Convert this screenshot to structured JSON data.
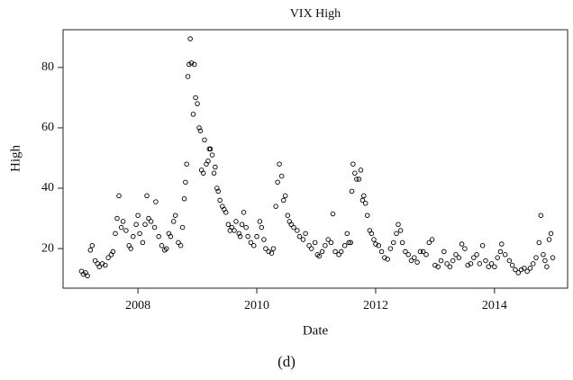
{
  "chart_data": {
    "type": "scatter",
    "title": "VIX High",
    "x_label": "Date",
    "y_label": "High",
    "caption": "(d)",
    "color": "#000000",
    "xlim": [
      2006.74,
      2015.23
    ],
    "ylim": [
      6.9,
      92.5
    ],
    "xticks": [
      2008,
      2010,
      2012,
      2014
    ],
    "yticks": [
      20,
      40,
      60,
      80
    ],
    "x": [
      2007.05,
      2007.08,
      2007.12,
      2007.15,
      2007.2,
      2007.23,
      2007.28,
      2007.32,
      2007.35,
      2007.4,
      2007.45,
      2007.5,
      2007.55,
      2007.58,
      2007.62,
      2007.65,
      2007.68,
      2007.72,
      2007.75,
      2007.8,
      2007.85,
      2007.88,
      2007.92,
      2007.97,
      2008.0,
      2008.03,
      2008.08,
      2008.12,
      2008.15,
      2008.18,
      2008.22,
      2008.28,
      2008.3,
      2008.35,
      2008.4,
      2008.45,
      2008.48,
      2008.52,
      2008.55,
      2008.6,
      2008.63,
      2008.68,
      2008.72,
      2008.75,
      2008.78,
      2008.8,
      2008.82,
      2008.84,
      2008.86,
      2008.88,
      2008.9,
      2008.93,
      2008.95,
      2008.97,
      2009.0,
      2009.03,
      2009.05,
      2009.07,
      2009.1,
      2009.12,
      2009.15,
      2009.18,
      2009.2,
      2009.22,
      2009.25,
      2009.28,
      2009.3,
      2009.33,
      2009.35,
      2009.38,
      2009.42,
      2009.45,
      2009.48,
      2009.52,
      2009.55,
      2009.58,
      2009.62,
      2009.65,
      2009.7,
      2009.72,
      2009.75,
      2009.78,
      2009.82,
      2009.85,
      2009.9,
      2009.95,
      2010.0,
      2010.05,
      2010.08,
      2010.12,
      2010.15,
      2010.2,
      2010.25,
      2010.28,
      2010.32,
      2010.35,
      2010.38,
      2010.42,
      2010.45,
      2010.48,
      2010.52,
      2010.55,
      2010.58,
      2010.62,
      2010.68,
      2010.72,
      2010.78,
      2010.82,
      2010.88,
      2010.92,
      2010.98,
      2011.02,
      2011.05,
      2011.1,
      2011.15,
      2011.2,
      2011.25,
      2011.28,
      2011.32,
      2011.38,
      2011.42,
      2011.48,
      2011.52,
      2011.55,
      2011.58,
      2011.6,
      2011.62,
      2011.65,
      2011.68,
      2011.72,
      2011.75,
      2011.78,
      2011.8,
      2011.83,
      2011.86,
      2011.9,
      2011.93,
      2011.97,
      2012.0,
      2012.05,
      2012.1,
      2012.15,
      2012.2,
      2012.25,
      2012.3,
      2012.35,
      2012.38,
      2012.42,
      2012.45,
      2012.5,
      2012.55,
      2012.6,
      2012.65,
      2012.7,
      2012.75,
      2012.8,
      2012.85,
      2012.9,
      2012.95,
      2013.0,
      2013.05,
      2013.1,
      2013.15,
      2013.2,
      2013.25,
      2013.3,
      2013.35,
      2013.4,
      2013.45,
      2013.5,
      2013.55,
      2013.6,
      2013.65,
      2013.7,
      2013.75,
      2013.8,
      2013.85,
      2013.9,
      2013.95,
      2014.0,
      2014.05,
      2014.1,
      2014.12,
      2014.18,
      2014.25,
      2014.3,
      2014.35,
      2014.4,
      2014.45,
      2014.5,
      2014.55,
      2014.6,
      2014.65,
      2014.7,
      2014.75,
      2014.78,
      2014.82,
      2014.85,
      2014.88,
      2014.92,
      2014.95,
      2014.98
    ],
    "values": [
      12.5,
      11.5,
      12,
      11,
      19.5,
      21,
      16,
      15,
      14,
      15,
      14.5,
      17,
      18,
      19,
      25,
      30,
      37.5,
      27,
      29,
      26,
      21,
      20,
      24,
      28,
      31,
      25,
      22,
      28,
      37.5,
      30,
      29,
      27,
      35.5,
      24,
      21,
      19.5,
      20,
      25,
      24,
      29,
      31,
      22,
      21,
      27,
      36.5,
      42,
      48,
      77,
      81,
      89.5,
      81.5,
      64.5,
      81,
      70,
      68,
      60,
      59,
      46,
      45,
      56,
      48,
      49,
      53,
      53,
      51,
      45,
      47,
      40,
      39,
      36,
      34,
      33,
      32,
      28,
      26,
      27,
      26,
      29,
      25,
      24,
      28,
      32,
      27,
      24,
      22,
      21,
      24,
      29,
      27,
      23,
      20,
      19,
      18.5,
      20,
      34,
      42,
      48,
      44,
      36,
      37.5,
      31,
      29,
      28,
      27,
      26,
      24,
      23,
      25,
      21,
      20,
      22,
      18,
      17.5,
      19,
      21,
      23,
      22,
      31.5,
      19,
      18,
      19,
      21,
      25,
      22,
      22,
      39,
      48,
      45,
      43,
      43,
      46,
      36,
      37.5,
      35,
      31,
      26,
      25,
      23,
      21.5,
      21,
      19,
      17,
      16.5,
      20,
      22,
      25,
      28,
      26,
      22,
      19,
      18,
      16,
      17,
      15.5,
      19,
      19,
      18,
      22,
      23,
      14.5,
      14,
      16,
      19,
      15,
      14,
      16,
      18,
      17,
      21.5,
      20,
      14.5,
      15,
      17,
      18,
      15,
      21,
      16,
      14,
      15,
      14,
      17,
      19,
      21.5,
      18,
      16,
      14.5,
      13,
      12,
      13,
      13.5,
      12.5,
      13.5,
      15,
      17,
      22,
      31,
      18,
      16,
      14,
      23,
      25,
      17
    ]
  }
}
